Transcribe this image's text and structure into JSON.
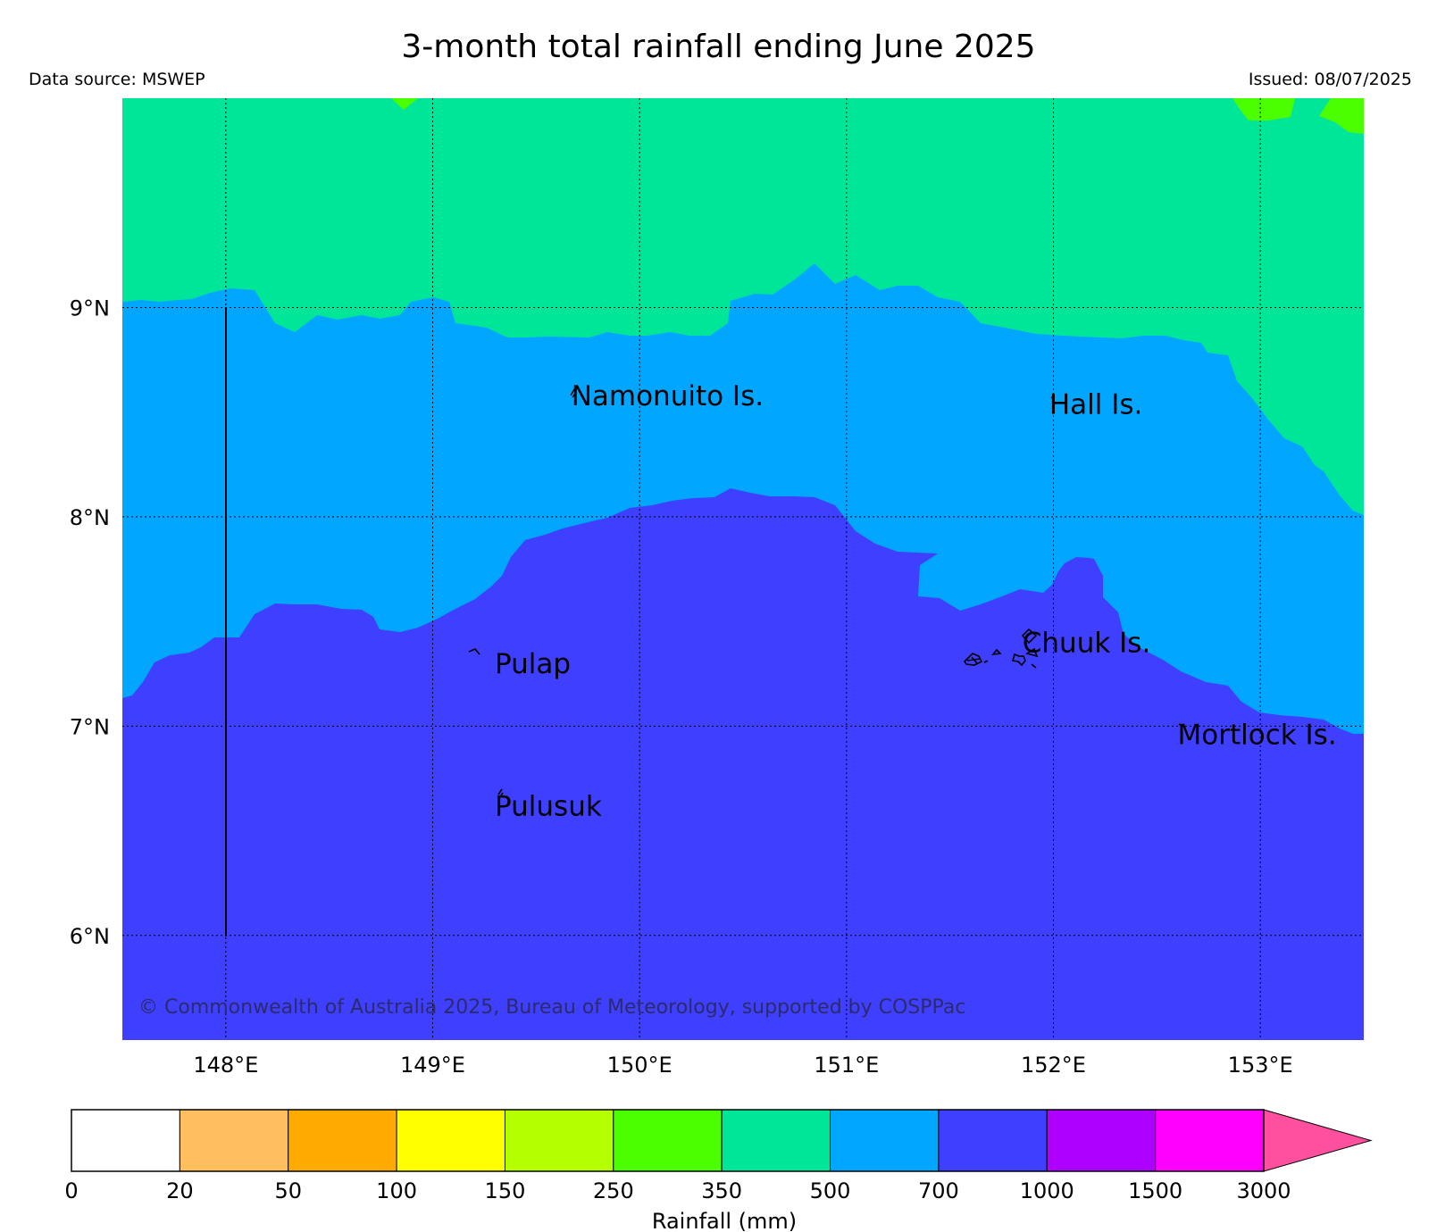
{
  "title": "3-month total rainfall ending June 2025",
  "data_source": "Data source: MSWEP",
  "issued": "Issued: 08/07/2025",
  "copyright": "© Commonwealth of Australia 2025, Bureau of Meteorology, supported by COSPPac",
  "map": {
    "lon_range": [
      147.5,
      153.5
    ],
    "lat_range": [
      5.5,
      10.0
    ],
    "grid": true,
    "lon_ticks": [
      {
        "value": 148,
        "label": "148°E"
      },
      {
        "value": 149,
        "label": "149°E"
      },
      {
        "value": 150,
        "label": "150°E"
      },
      {
        "value": 151,
        "label": "151°E"
      },
      {
        "value": 152,
        "label": "152°E"
      },
      {
        "value": 153,
        "label": "153°E"
      }
    ],
    "lat_ticks": [
      {
        "value": 9,
        "label": "9°N"
      },
      {
        "value": 8,
        "label": "8°N"
      },
      {
        "value": 7,
        "label": "7°N"
      },
      {
        "value": 6,
        "label": "6°N"
      }
    ],
    "places": [
      {
        "name": "Namonuito Is.",
        "lon": 149.67,
        "lat": 8.58
      },
      {
        "name": "Hall Is.",
        "lon": 151.98,
        "lat": 8.54
      },
      {
        "name": "Pulap",
        "lon": 149.3,
        "lat": 7.3
      },
      {
        "name": "Chuuk Is.",
        "lon": 151.85,
        "lat": 7.4
      },
      {
        "name": "Mortlock Is.",
        "lon": 152.6,
        "lat": 6.96
      },
      {
        "name": "Pulusuk",
        "lon": 149.3,
        "lat": 6.62
      }
    ],
    "zones": [
      {
        "range": "350-500",
        "color": "#00e699",
        "region": "north of about 9°N"
      },
      {
        "range": "500-700",
        "color": "#00a6ff",
        "region": "central band"
      },
      {
        "range": "700-1000",
        "color": "#3f3fff",
        "region": "south of about 7.5°N"
      },
      {
        "range": "250-350",
        "color": "#4cff00",
        "region": "small patches along top edge"
      }
    ]
  },
  "colorbar": {
    "label": "Rainfall (mm)",
    "ticks": [
      "0",
      "20",
      "50",
      "100",
      "150",
      "250",
      "350",
      "500",
      "700",
      "1000",
      "1500",
      "3000"
    ],
    "colors": [
      "#ffffff",
      "#ffbf5f",
      "#ffaa00",
      "#ffff00",
      "#b4ff00",
      "#4cff00",
      "#00e699",
      "#00a6ff",
      "#3f3fff",
      "#ad00ff",
      "#ff00ff"
    ],
    "extend_color": "#ff4f9f"
  }
}
